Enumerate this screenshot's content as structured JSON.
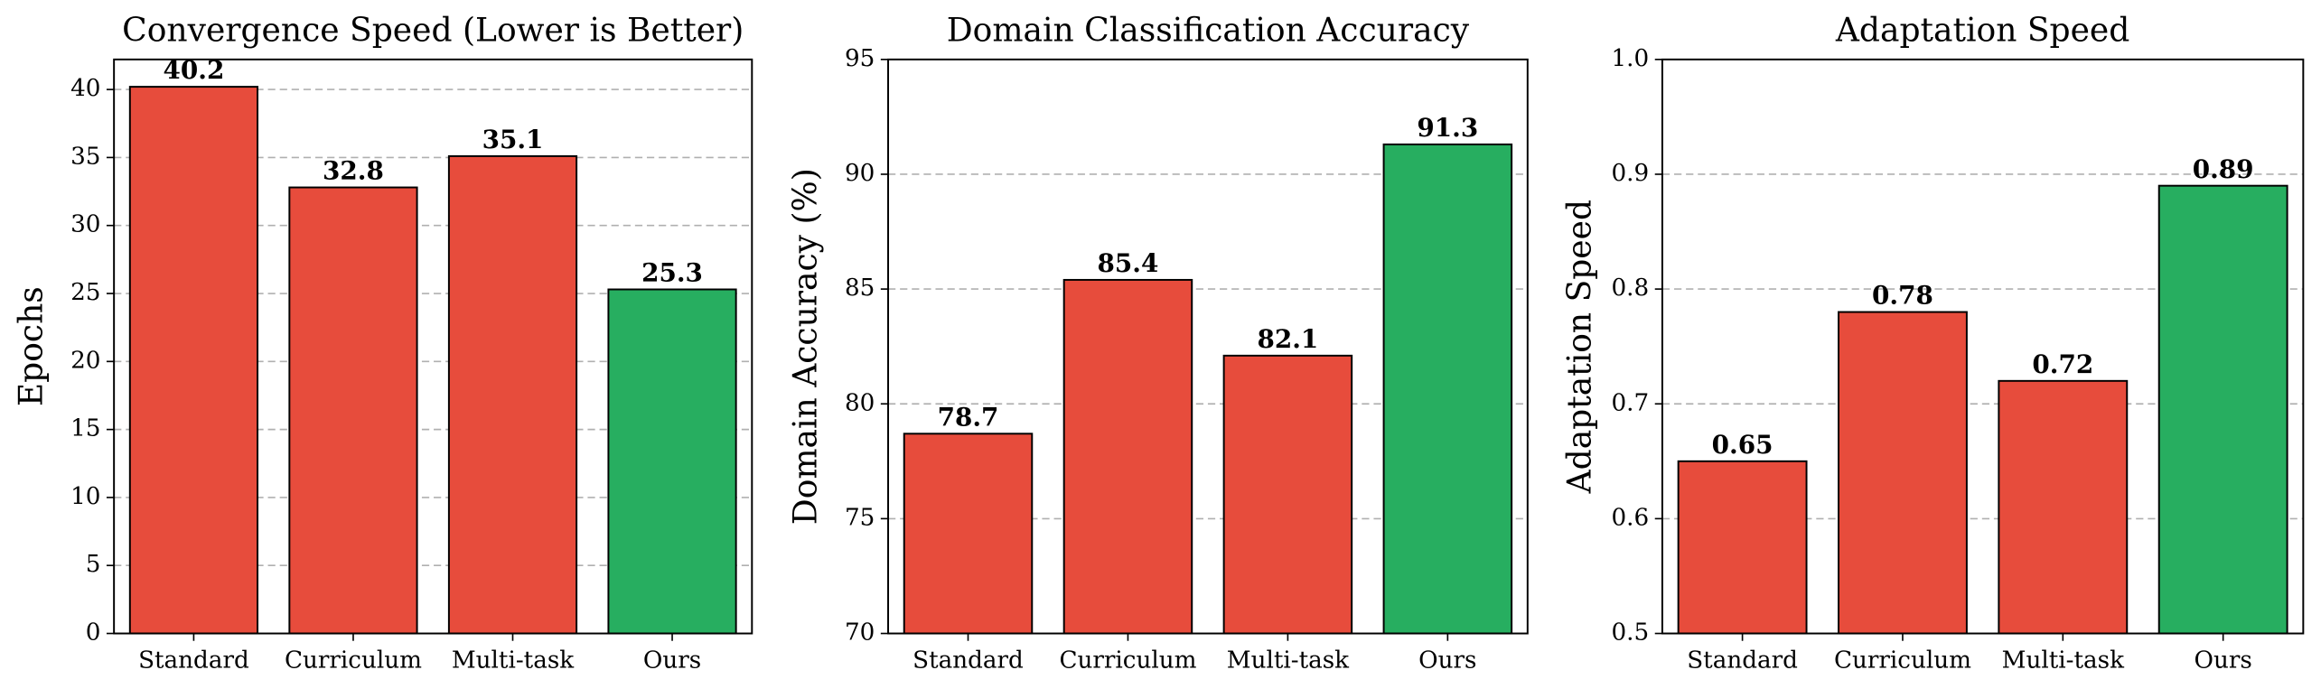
{
  "chart_data": [
    {
      "type": "bar",
      "title": "Convergence Speed (Lower is Better)",
      "ylabel": "Epochs",
      "categories": [
        "Standard",
        "Curriculum",
        "Multi-task",
        "Ours"
      ],
      "values": [
        40.2,
        32.8,
        35.1,
        25.3
      ],
      "colors": [
        "#e74c3c",
        "#e74c3c",
        "#e74c3c",
        "#27ae60"
      ],
      "ylim": [
        0,
        42.21
      ],
      "yticks": [
        0,
        5,
        10,
        15,
        20,
        25,
        30,
        35,
        40
      ],
      "grid": true
    },
    {
      "type": "bar",
      "title": "Domain Classification Accuracy",
      "ylabel": "Domain Accuracy (%)",
      "categories": [
        "Standard",
        "Curriculum",
        "Multi-task",
        "Ours"
      ],
      "values": [
        78.7,
        85.4,
        82.1,
        91.3
      ],
      "colors": [
        "#e74c3c",
        "#e74c3c",
        "#e74c3c",
        "#27ae60"
      ],
      "ylim": [
        70,
        95
      ],
      "yticks": [
        70,
        75,
        80,
        85,
        90,
        95
      ],
      "grid": true
    },
    {
      "type": "bar",
      "title": "Adaptation Speed",
      "ylabel": "Adaptation Speed",
      "categories": [
        "Standard",
        "Curriculum",
        "Multi-task",
        "Ours"
      ],
      "values": [
        0.65,
        0.78,
        0.72,
        0.89
      ],
      "colors": [
        "#e74c3c",
        "#e74c3c",
        "#e74c3c",
        "#27ae60"
      ],
      "ylim": [
        0.5,
        1.0
      ],
      "yticks": [
        0.5,
        0.6,
        0.7,
        0.8,
        0.9,
        {
          "value": 1,
          "label": "1.0"
        }
      ],
      "grid": true
    }
  ]
}
